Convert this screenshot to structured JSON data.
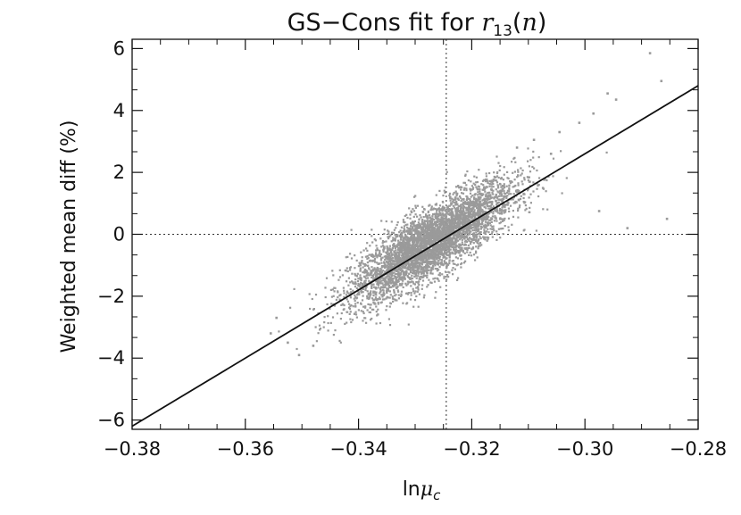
{
  "chart_data": {
    "type": "scatter",
    "title": {
      "prefix": "GS−Cons fit for ",
      "math_symbol": "r",
      "math_subscript": "13",
      "math_suffix_open": "(",
      "math_var": "n",
      "math_suffix_close": ")"
    },
    "xlabel": {
      "prefix": "ln",
      "symbol": "μ",
      "subscript": "c"
    },
    "ylabel": "Weighted mean diff (%)",
    "xlim": [
      -0.38,
      -0.28
    ],
    "ylim": [
      -6.3,
      6.3
    ],
    "xticks": [
      -0.38,
      -0.36,
      -0.34,
      -0.32,
      -0.3,
      -0.28
    ],
    "xtick_labels": [
      "−0.38",
      "−0.36",
      "−0.34",
      "−0.32",
      "−0.30",
      "−0.28"
    ],
    "yticks": [
      -6,
      -4,
      -2,
      0,
      2,
      4,
      6
    ],
    "ytick_labels": [
      "−6",
      "−4",
      "−2",
      "0",
      "2",
      "4",
      "6"
    ],
    "reference_lines": {
      "x": -0.3245,
      "y": 0
    },
    "fit_line": {
      "x": [
        -0.38,
        -0.28
      ],
      "y": [
        -6.2,
        4.8
      ]
    },
    "scatter_cloud": {
      "count": 4500,
      "center": [
        -0.327,
        -0.25
      ],
      "slope": 110,
      "x_spread": 0.0072,
      "y_scatter": 0.55
    },
    "outliers": [
      [
        -0.2885,
        5.85
      ],
      [
        -0.2865,
        4.95
      ],
      [
        -0.2945,
        4.35
      ],
      [
        -0.296,
        4.55
      ],
      [
        -0.2985,
        3.9
      ],
      [
        -0.301,
        3.6
      ],
      [
        -0.3045,
        3.3
      ],
      [
        -0.2975,
        0.75
      ],
      [
        -0.2925,
        0.2
      ],
      [
        -0.2855,
        0.5
      ],
      [
        -0.3545,
        -2.7
      ],
      [
        -0.3555,
        -3.2
      ],
      [
        -0.3525,
        -3.5
      ],
      [
        -0.3505,
        -3.9
      ],
      [
        -0.348,
        -3.6
      ],
      [
        -0.312,
        2.8
      ],
      [
        -0.309,
        3.05
      ],
      [
        -0.306,
        2.6
      ]
    ],
    "colors": {
      "points": "#9a9a9a",
      "fit": "#111111",
      "axes": "#111111",
      "refline": "#333333"
    }
  }
}
